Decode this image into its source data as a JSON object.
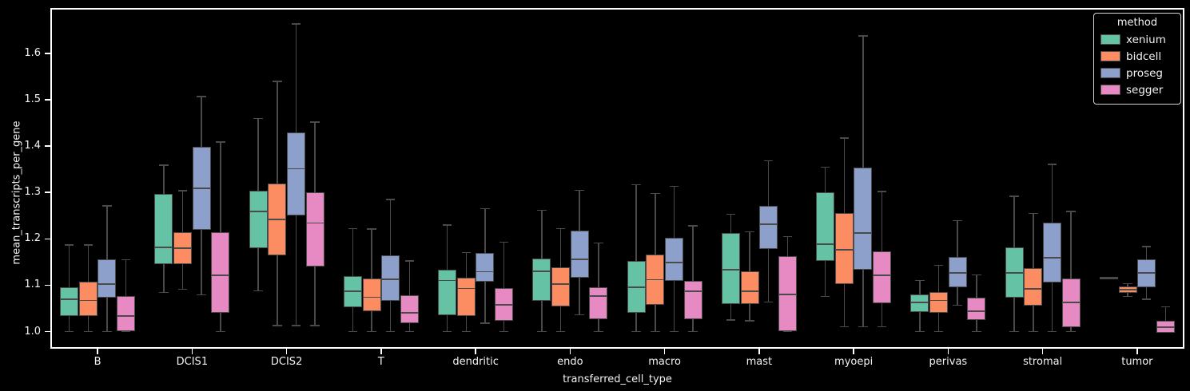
{
  "chart_data": {
    "type": "box",
    "title": "",
    "xlabel": "transferred_cell_type",
    "ylabel": "mean_transcripts_per_gene",
    "ylim": [
      0.963,
      1.698
    ],
    "grid": false,
    "background_color": "#000000",
    "text_color": "#f2f2f2",
    "spine_color": "#ffffff",
    "box_edge_color": "#4a4a4a",
    "yticks": {
      "values": [
        1.0,
        1.1,
        1.2,
        1.3,
        1.4,
        1.5,
        1.6
      ],
      "labels": [
        "1.0",
        "1.1",
        "1.2",
        "1.3",
        "1.4",
        "1.5",
        "1.6"
      ]
    },
    "categories": [
      "B",
      "DCIS1",
      "DCIS2",
      "T",
      "dendritic",
      "endo",
      "macro",
      "mast",
      "myoepi",
      "perivas",
      "stromal",
      "tumor"
    ],
    "legend": {
      "title": "method",
      "position": "upper right"
    },
    "box_stats_order": [
      "whisker_low",
      "q1",
      "median",
      "q3",
      "whisker_high"
    ],
    "series": [
      {
        "name": "xenium",
        "color": "#66c2a5",
        "data": [
          [
            1.0,
            1.034,
            1.07,
            1.095,
            1.187
          ],
          [
            1.084,
            1.146,
            1.182,
            1.297,
            1.359
          ],
          [
            1.088,
            1.18,
            1.259,
            1.304,
            1.46
          ],
          [
            1.0,
            1.053,
            1.087,
            1.119,
            1.222
          ],
          [
            1.0,
            1.036,
            1.11,
            1.133,
            1.23
          ],
          [
            1.0,
            1.067,
            1.13,
            1.157,
            1.262
          ],
          [
            1.0,
            1.04,
            1.096,
            1.153,
            1.317
          ],
          [
            1.025,
            1.059,
            1.133,
            1.212,
            1.253
          ],
          [
            1.076,
            1.153,
            1.188,
            1.3,
            1.355
          ],
          [
            1.0,
            1.043,
            1.063,
            1.08,
            1.11
          ],
          [
            1.0,
            1.073,
            1.126,
            1.181,
            1.292
          ],
          [
            1.116,
            1.116,
            1.116,
            1.116,
            1.116
          ]
        ]
      },
      {
        "name": "bidcell",
        "color": "#fc8d62",
        "data": [
          [
            1.0,
            1.033,
            1.067,
            1.107,
            1.187
          ],
          [
            1.091,
            1.146,
            1.18,
            1.215,
            1.304
          ],
          [
            1.013,
            1.165,
            1.242,
            1.32,
            1.54
          ],
          [
            1.0,
            1.044,
            1.074,
            1.114,
            1.221
          ],
          [
            1.0,
            1.033,
            1.093,
            1.116,
            1.17
          ],
          [
            1.0,
            1.055,
            1.102,
            1.139,
            1.222
          ],
          [
            1.0,
            1.057,
            1.112,
            1.166,
            1.298
          ],
          [
            1.023,
            1.06,
            1.087,
            1.13,
            1.215
          ],
          [
            1.01,
            1.103,
            1.176,
            1.255,
            1.417
          ],
          [
            1.0,
            1.041,
            1.067,
            1.086,
            1.143
          ],
          [
            1.0,
            1.056,
            1.092,
            1.137,
            1.255
          ],
          [
            1.076,
            1.083,
            1.09,
            1.097,
            1.103
          ]
        ]
      },
      {
        "name": "proseg",
        "color": "#8da0cb",
        "data": [
          [
            1.0,
            1.074,
            1.103,
            1.155,
            1.271
          ],
          [
            1.079,
            1.22,
            1.309,
            1.398,
            1.507
          ],
          [
            1.013,
            1.251,
            1.351,
            1.43,
            1.664
          ],
          [
            1.0,
            1.066,
            1.113,
            1.164,
            1.285
          ],
          [
            1.018,
            1.107,
            1.129,
            1.169,
            1.265
          ],
          [
            1.036,
            1.116,
            1.156,
            1.218,
            1.305
          ],
          [
            1.0,
            1.11,
            1.149,
            1.202,
            1.313
          ],
          [
            1.064,
            1.178,
            1.232,
            1.271,
            1.368
          ],
          [
            1.01,
            1.133,
            1.213,
            1.354,
            1.638
          ],
          [
            1.057,
            1.096,
            1.126,
            1.161,
            1.239
          ],
          [
            1.0,
            1.106,
            1.159,
            1.235,
            1.361
          ],
          [
            1.07,
            1.096,
            1.126,
            1.156,
            1.183
          ]
        ]
      },
      {
        "name": "segger",
        "color": "#e78ac3",
        "data": [
          [
            1.0,
            1.0,
            1.034,
            1.076,
            1.155
          ],
          [
            1.0,
            1.04,
            1.122,
            1.215,
            1.409
          ],
          [
            1.013,
            1.14,
            1.234,
            1.301,
            1.452
          ],
          [
            1.0,
            1.018,
            1.041,
            1.079,
            1.152
          ],
          [
            1.0,
            1.024,
            1.057,
            1.094,
            1.193
          ],
          [
            1.0,
            1.027,
            1.076,
            1.096,
            1.191
          ],
          [
            1.0,
            1.027,
            1.087,
            1.11,
            1.228
          ],
          [
            1.0,
            1.0,
            1.08,
            1.163,
            1.205
          ],
          [
            1.01,
            1.061,
            1.122,
            1.173,
            1.302
          ],
          [
            1.0,
            1.025,
            1.044,
            1.073,
            1.122
          ],
          [
            1.0,
            1.01,
            1.063,
            1.114,
            1.259
          ],
          [
            0.998,
            0.998,
            1.01,
            1.024,
            1.053
          ]
        ]
      }
    ]
  }
}
